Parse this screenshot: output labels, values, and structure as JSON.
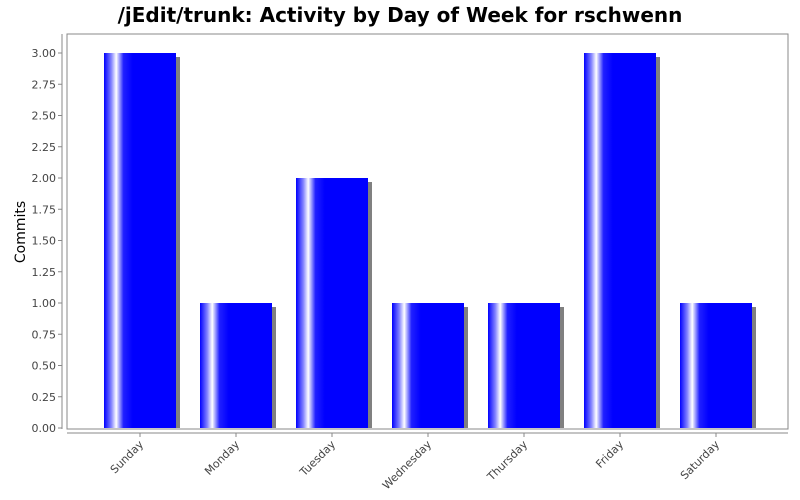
{
  "chart_data": {
    "type": "bar",
    "title": "/jEdit/trunk: Activity by Day of Week for rschwenn",
    "xlabel": "",
    "ylabel": "Commits",
    "categories": [
      "Sunday",
      "Monday",
      "Tuesday",
      "Wednesday",
      "Thursday",
      "Friday",
      "Saturday"
    ],
    "values": [
      3,
      1,
      2,
      1,
      1,
      3,
      1
    ],
    "ylim": [
      0,
      3.15
    ],
    "yticks": [
      "0.00",
      "0.25",
      "0.50",
      "0.75",
      "1.00",
      "1.25",
      "1.50",
      "1.75",
      "2.00",
      "2.25",
      "2.50",
      "2.75",
      "3.00"
    ],
    "grid": false,
    "legend": "none",
    "colors": {
      "bar": "#0000ff",
      "bar_highlight": "#ffffff",
      "shadow": "#808080",
      "axis": "#888888"
    }
  }
}
